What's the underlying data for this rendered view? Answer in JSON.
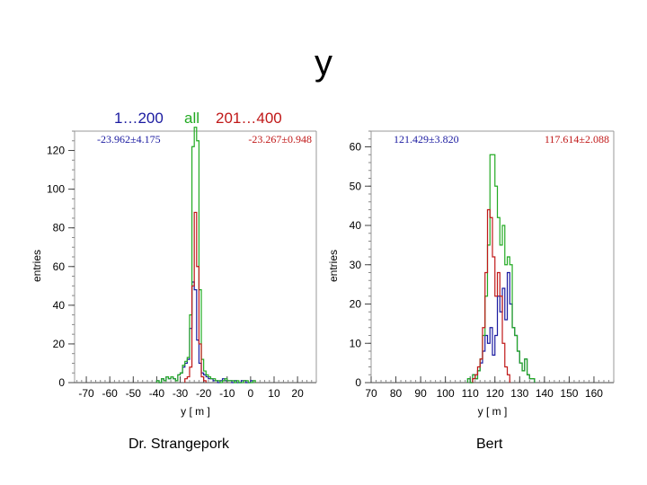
{
  "page": {
    "title": "y",
    "legend": [
      {
        "label": "1…200",
        "color": "#1a1aa0"
      },
      {
        "label": "all",
        "color": "#22aa22"
      },
      {
        "label": "201…400",
        "color": "#c01818"
      }
    ],
    "captions": [
      "Dr. Strangepork",
      "Bert"
    ]
  },
  "chart_data": [
    {
      "type": "histogram",
      "xlabel": "y [ m ]",
      "ylabel": "entries",
      "xlim": [
        -75,
        28
      ],
      "ylim": [
        0,
        130
      ],
      "xticks": [
        -70,
        -60,
        -50,
        -40,
        -30,
        -20,
        -10,
        0,
        10,
        20
      ],
      "yticks": [
        0,
        20,
        40,
        60,
        80,
        100,
        120
      ],
      "bin_width": 1,
      "stats": [
        {
          "text": "-23.962±4.175",
          "color": "#1a1aa0",
          "align": "left"
        },
        {
          "text": "-23.267±0.948",
          "color": "#c01818",
          "align": "right"
        }
      ],
      "series": [
        {
          "color": "#1a1aa0",
          "x_start": -40,
          "values": [
            1,
            0,
            2,
            1,
            3,
            2,
            3,
            2,
            1,
            4,
            5,
            8,
            10,
            12,
            28,
            52,
            48,
            22,
            10,
            5,
            4,
            3,
            2,
            2,
            1,
            1,
            0,
            1,
            2,
            1,
            1,
            1,
            0,
            1,
            0,
            0,
            1,
            1,
            0,
            0,
            1
          ]
        },
        {
          "color": "#22aa22",
          "x_start": -40,
          "values": [
            1,
            0,
            2,
            1,
            3,
            2,
            3,
            2,
            1,
            4,
            5,
            9,
            11,
            13,
            35,
            122,
            132,
            125,
            48,
            12,
            6,
            4,
            3,
            2,
            2,
            1,
            1,
            0,
            1,
            2,
            1,
            1,
            1,
            0,
            1,
            0,
            0,
            1,
            1,
            0,
            0,
            1
          ]
        },
        {
          "color": "#c01818",
          "x_start": -28,
          "values": [
            2,
            3,
            8,
            50,
            88,
            60,
            20,
            3,
            1
          ]
        }
      ]
    },
    {
      "type": "histogram",
      "xlabel": "y [ m ]",
      "ylabel": "entries",
      "xlim": [
        70,
        168
      ],
      "ylim": [
        0,
        64
      ],
      "xticks": [
        70,
        80,
        90,
        100,
        110,
        120,
        130,
        140,
        150,
        160
      ],
      "yticks": [
        0,
        10,
        20,
        30,
        40,
        50,
        60
      ],
      "bin_width": 1,
      "stats": [
        {
          "text": "121.429±3.820",
          "color": "#1a1aa0",
          "align": "left"
        },
        {
          "text": "117.614±2.088",
          "color": "#c01818",
          "align": "right"
        }
      ],
      "series": [
        {
          "color": "#1a1aa0",
          "x_start": 109,
          "values": [
            1,
            0,
            2,
            1,
            3,
            5,
            8,
            12,
            10,
            14,
            7,
            12,
            22,
            18,
            24,
            16,
            28,
            20,
            14,
            12,
            8,
            5,
            3,
            6,
            2,
            1,
            1
          ]
        },
        {
          "color": "#22aa22",
          "x_start": 109,
          "values": [
            1,
            0,
            2,
            1,
            3,
            6,
            12,
            22,
            35,
            58,
            58,
            50,
            42,
            35,
            40,
            30,
            32,
            30,
            14,
            12,
            8,
            5,
            3,
            6,
            2,
            1,
            1
          ]
        },
        {
          "color": "#c01818",
          "x_start": 111,
          "values": [
            1,
            2,
            4,
            6,
            14,
            28,
            44,
            42,
            32,
            22,
            28,
            22,
            10,
            4,
            2
          ]
        }
      ]
    }
  ]
}
